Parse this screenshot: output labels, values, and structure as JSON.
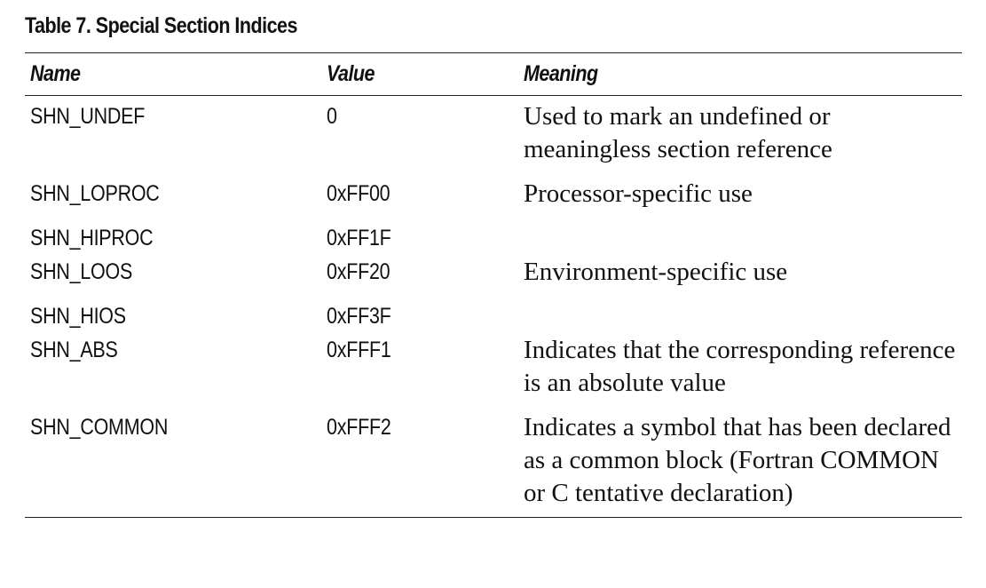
{
  "table": {
    "title": "Table 7.  Special Section Indices",
    "headers": {
      "name": "Name",
      "value": "Value",
      "meaning": "Meaning"
    },
    "rows": [
      {
        "name": "SHN_UNDEF",
        "value": "0",
        "meaning": "Used to mark an undefined or meaningless section reference"
      },
      {
        "name": "SHN_LOPROC",
        "value": "0xFF00",
        "meaning": "Processor-specific use"
      },
      {
        "name": "SHN_HIPROC",
        "value": "0xFF1F",
        "meaning": ""
      },
      {
        "name": "SHN_LOOS",
        "value": "0xFF20",
        "meaning": "Environment-specific use"
      },
      {
        "name": "SHN_HIOS",
        "value": "0xFF3F",
        "meaning": ""
      },
      {
        "name": "SHN_ABS",
        "value": "0xFFF1",
        "meaning": "Indicates that the corresponding reference is an absolute value"
      },
      {
        "name": "SHN_COMMON",
        "value": "0xFFF2",
        "meaning": "Indicates a symbol that has been declared as a common block (Fortran COMMON or C tentative declaration)"
      }
    ]
  }
}
